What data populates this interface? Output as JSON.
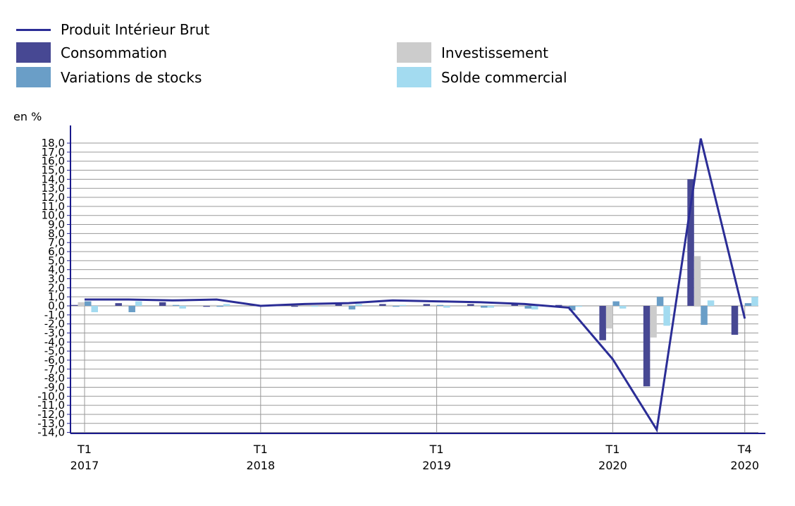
{
  "chart_data": {
    "type": "bar+line",
    "unit_label": "en %",
    "categories": [
      "T1 2017",
      "T2 2017",
      "T3 2017",
      "T4 2017",
      "T1 2018",
      "T2 2018",
      "T3 2018",
      "T4 2018",
      "T1 2019",
      "T2 2019",
      "T3 2019",
      "T4 2019",
      "T1 2020",
      "T2 2020",
      "T3 2020",
      "T4 2020"
    ],
    "x_tick_labels": [
      {
        "index": 0,
        "q": "T1",
        "year": "2017"
      },
      {
        "index": 4,
        "q": "T1",
        "year": "2018"
      },
      {
        "index": 8,
        "q": "T1",
        "year": "2019"
      },
      {
        "index": 12,
        "q": "T1",
        "year": "2020"
      },
      {
        "index": 15,
        "q": "T4",
        "year": "2020"
      }
    ],
    "ylim": [
      -14,
      19
    ],
    "yticks": [
      "18,0",
      "17,0",
      "16,0",
      "15,0",
      "14,0",
      "13,0",
      "12,0",
      "11,0",
      "10,0",
      "9,0",
      "8,0",
      "7,0",
      "6,0",
      "5,0",
      "4,0",
      "3,0",
      "2,0",
      "1,0",
      "0,0",
      "-1,0",
      "-2,0",
      "-3,0",
      "-4,0",
      "-5,0",
      "-6,0",
      "-7,0",
      "-8,0",
      "-9,0",
      "-10,0",
      "-11,0",
      "-12,0",
      "-13,0",
      "-14,0"
    ],
    "bar_series": [
      {
        "name": "Consommation",
        "color": "#474893",
        "values": [
          0.1,
          0.3,
          0.4,
          -0.1,
          0.0,
          -0.1,
          0.2,
          0.2,
          0.2,
          0.2,
          0.2,
          0.1,
          -3.8,
          -8.9,
          14.0,
          -3.2
        ]
      },
      {
        "name": "Investissement",
        "color": "#cccccc",
        "values": [
          0.4,
          0.1,
          0.1,
          0.1,
          0.0,
          0.0,
          0.1,
          0.1,
          0.1,
          0.1,
          0.1,
          -0.1,
          -2.5,
          -3.5,
          5.5,
          0.1
        ]
      },
      {
        "name": "Variations de stocks",
        "color": "#6a9ec7",
        "values": [
          0.5,
          -0.7,
          0.1,
          -0.1,
          0.0,
          0.0,
          -0.4,
          -0.1,
          0.1,
          -0.2,
          -0.3,
          -0.5,
          0.5,
          1.0,
          -2.1,
          0.3
        ]
      },
      {
        "name": "Solde commercial",
        "color": "#a3dbf0",
        "values": [
          -0.7,
          0.5,
          -0.3,
          0.2,
          0.0,
          -0.1,
          0.2,
          0.1,
          -0.2,
          -0.2,
          -0.4,
          -0.1,
          -0.3,
          -2.2,
          0.6,
          1.0
        ]
      }
    ],
    "line_series": {
      "name": "Produit Intérieur Brut",
      "color": "#2b2d96",
      "values": [
        0.7,
        0.7,
        0.6,
        0.7,
        0.0,
        0.2,
        0.3,
        0.6,
        0.5,
        0.4,
        0.2,
        -0.2,
        -5.9,
        -13.7,
        18.5,
        -1.4
      ]
    }
  }
}
